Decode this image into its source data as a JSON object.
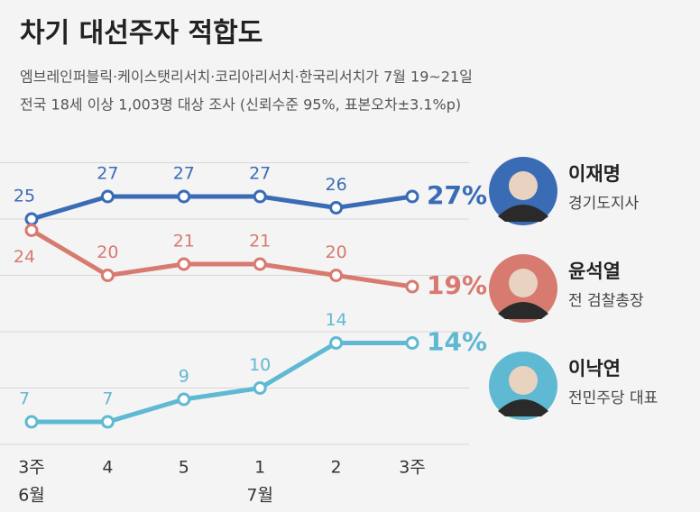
{
  "chart_data": {
    "type": "line",
    "title": "차기 대선주자 적합도",
    "subtitle": [
      "엠브레인퍼블릭·케이스탯리서치·코리아리서치·한국리서치가 7월 19~21일",
      "전국 18세 이상 1,003명 대상 조사 (신뢰수준 95%, 표본오차±3.1%p)"
    ],
    "categories": [
      "3주",
      "4",
      "5",
      "1",
      "2",
      "3주"
    ],
    "months": [
      "6월",
      null,
      null,
      "7월",
      null,
      null
    ],
    "ylim": [
      4,
      31
    ],
    "yticks": [
      5,
      10,
      15,
      20,
      25,
      30
    ],
    "grid": true,
    "series": [
      {
        "name": "이재명",
        "description": "경기도지사",
        "color": "#3a6cb6",
        "values": [
          25,
          27,
          27,
          27,
          26,
          27
        ],
        "value_labels": [
          "25",
          "27",
          "27",
          "27",
          "26",
          "27%"
        ]
      },
      {
        "name": "윤석열",
        "description": "전 검찰총장",
        "color": "#d77a6f",
        "values": [
          24,
          20,
          21,
          21,
          20,
          19
        ],
        "value_labels": [
          "24",
          "20",
          "21",
          "21",
          "20",
          "19%"
        ]
      },
      {
        "name": "이낙연",
        "description": "전민주당 대표",
        "color": "#5fb9d2",
        "values": [
          7,
          7,
          9,
          10,
          14,
          14
        ],
        "value_labels": [
          "7",
          "7",
          "9",
          "10",
          "14",
          "14%"
        ]
      }
    ]
  }
}
